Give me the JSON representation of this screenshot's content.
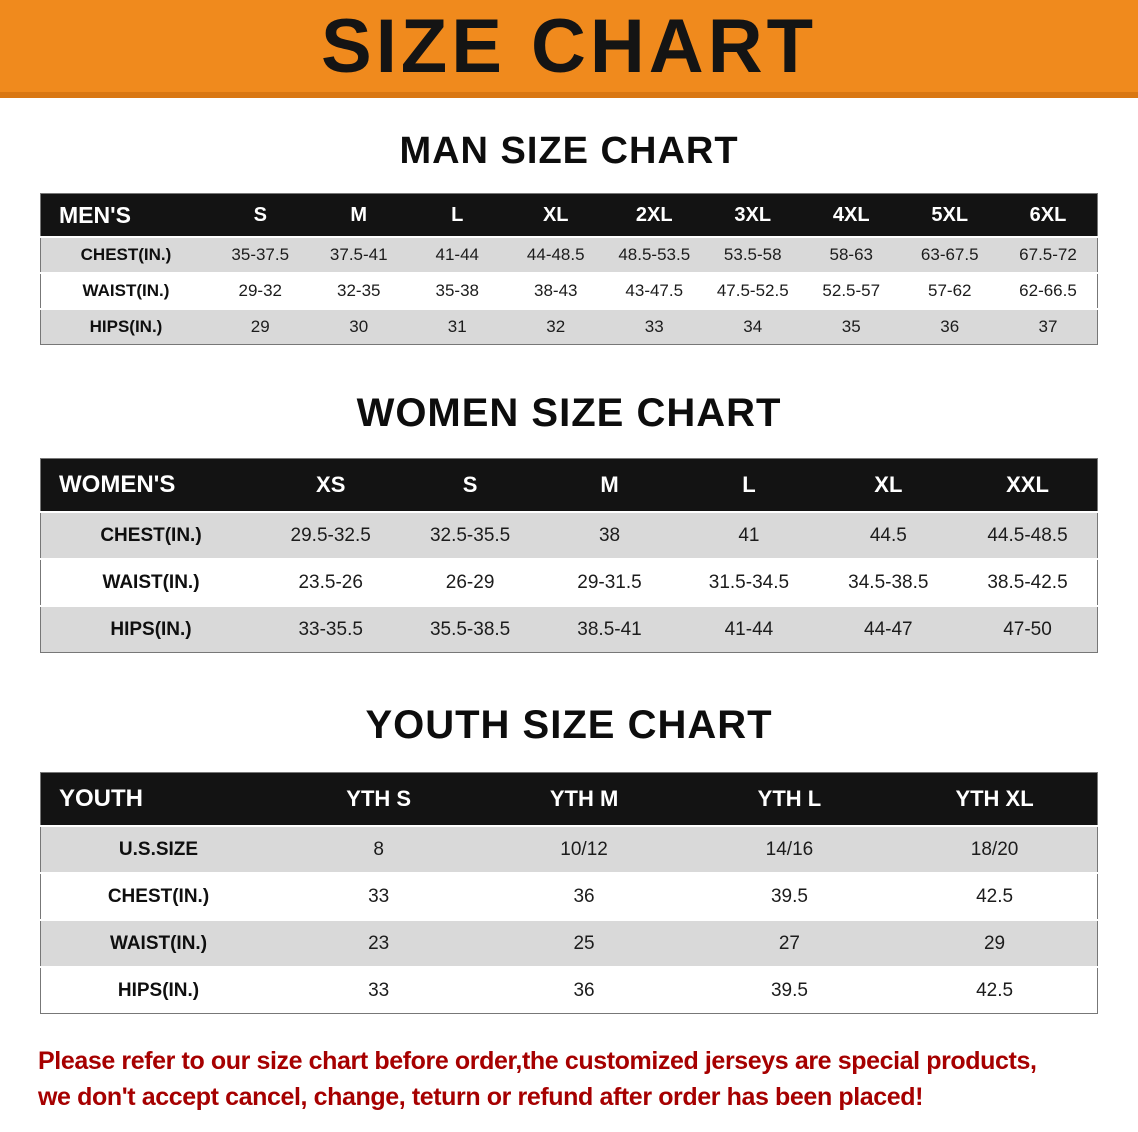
{
  "banner": {
    "title": "SIZE CHART"
  },
  "colors": {
    "banner_orange": "#f08a1d",
    "banner_border": "#d97713",
    "table_header_black": "#131313",
    "row_gray": "#d9d9d9",
    "note_red": "#a60000"
  },
  "sections": [
    {
      "heading": "MAN SIZE CHART",
      "table": {
        "header": [
          "MEN'S",
          "S",
          "M",
          "L",
          "XL",
          "2XL",
          "3XL",
          "4XL",
          "5XL",
          "6XL"
        ],
        "rows": [
          [
            "CHEST(IN.)",
            "35-37.5",
            "37.5-41",
            "41-44",
            "44-48.5",
            "48.5-53.5",
            "53.5-58",
            "58-63",
            "63-67.5",
            "67.5-72"
          ],
          [
            "WAIST(IN.)",
            "29-32",
            "32-35",
            "35-38",
            "38-43",
            "43-47.5",
            "47.5-52.5",
            "52.5-57",
            "57-62",
            "62-66.5"
          ],
          [
            "HIPS(IN.)",
            "29",
            "30",
            "31",
            "32",
            "33",
            "34",
            "35",
            "36",
            "37"
          ]
        ]
      }
    },
    {
      "heading": "WOMEN SIZE CHART",
      "table": {
        "header": [
          "WOMEN'S",
          "XS",
          "S",
          "M",
          "L",
          "XL",
          "XXL"
        ],
        "rows": [
          [
            "CHEST(IN.)",
            "29.5-32.5",
            "32.5-35.5",
            "38",
            "41",
            "44.5",
            "44.5-48.5"
          ],
          [
            "WAIST(IN.)",
            "23.5-26",
            "26-29",
            "29-31.5",
            "31.5-34.5",
            "34.5-38.5",
            "38.5-42.5"
          ],
          [
            "HIPS(IN.)",
            "33-35.5",
            "35.5-38.5",
            "38.5-41",
            "41-44",
            "44-47",
            "47-50"
          ]
        ]
      }
    },
    {
      "heading": "YOUTH SIZE CHART",
      "table": {
        "header": [
          "YOUTH",
          "YTH S",
          "YTH M",
          "YTH L",
          "YTH XL"
        ],
        "rows": [
          [
            "U.S.SIZE",
            "8",
            "10/12",
            "14/16",
            "18/20"
          ],
          [
            "CHEST(IN.)",
            "33",
            "36",
            "39.5",
            "42.5"
          ],
          [
            "WAIST(IN.)",
            "23",
            "25",
            "27",
            "29"
          ],
          [
            "HIPS(IN.)",
            "33",
            "36",
            "39.5",
            "42.5"
          ]
        ]
      }
    }
  ],
  "note": {
    "lines": [
      "Please refer to our size chart before order,the customized jerseys are special products,",
      "we don't accept cancel, change, teturn or refund after order has been placed!"
    ]
  }
}
